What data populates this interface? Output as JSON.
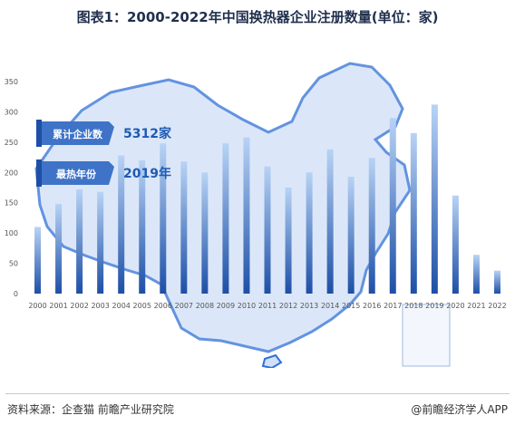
{
  "title": "图表1：2000-2022年中国换热器企业注册数量(单位：家)",
  "callouts": [
    {
      "label": "累计企业数",
      "value": "5312家"
    },
    {
      "label": "最热年份",
      "value": "2019年"
    }
  ],
  "source": "资料来源：企查猫 前瞻产业研究院",
  "brand": "@前瞻经济学人APP",
  "colors": {
    "bar_top": "#b8d3f5",
    "bar_bottom": "#1d4fa6",
    "map": "#cfe0f7",
    "map_border": "#2f6fd6",
    "callout": "#3f73c8"
  },
  "chart_data": {
    "type": "bar",
    "title": "图表1：2000-2022年中国换热器企业注册数量(单位：家)",
    "xlabel": "",
    "ylabel": "",
    "categories": [
      "2000",
      "2001",
      "2002",
      "2003",
      "2004",
      "2005",
      "2006",
      "2007",
      "2008",
      "2009",
      "2010",
      "2011",
      "2012",
      "2013",
      "2014",
      "2015",
      "2016",
      "2017",
      "2018",
      "2019",
      "2020",
      "2021",
      "2022"
    ],
    "values": [
      110,
      148,
      172,
      168,
      228,
      220,
      248,
      218,
      200,
      248,
      258,
      210,
      175,
      200,
      238,
      193,
      224,
      290,
      265,
      312,
      162,
      64,
      38
    ],
    "ylim": [
      0,
      350
    ],
    "yticks": [
      0,
      50,
      100,
      150,
      200,
      250,
      300,
      350
    ],
    "grid": false,
    "legend": "none"
  }
}
